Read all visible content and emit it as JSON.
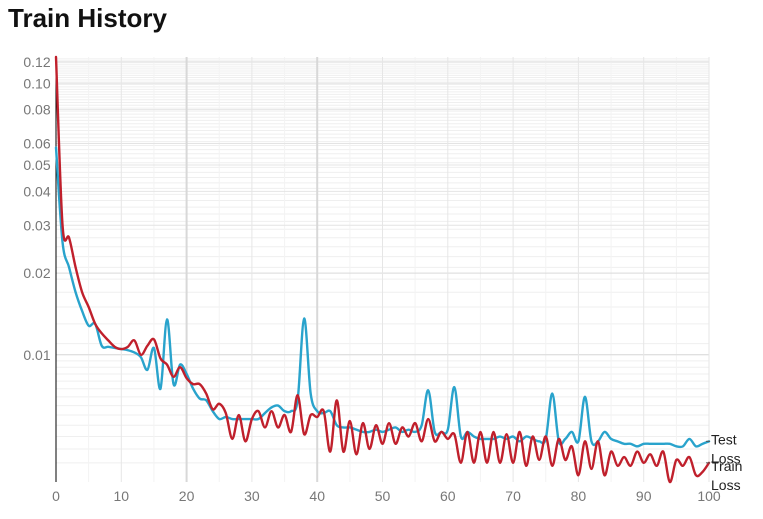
{
  "chart_data": {
    "type": "line",
    "title": "Train History",
    "xlabel": "",
    "ylabel": "",
    "xlim": [
      0,
      100
    ],
    "ylim": [
      0.0034,
      0.125
    ],
    "yscale": "log",
    "grid": true,
    "legend": "line-end labels",
    "x_ticks": [
      0,
      10,
      20,
      30,
      40,
      50,
      60,
      70,
      80,
      90,
      100
    ],
    "y_ticks": [
      0.01,
      0.02,
      0.03,
      0.04,
      0.05,
      0.06,
      0.08,
      0.1,
      0.12
    ],
    "y_tick_labels": [
      "0.01",
      "0.02",
      "0.03",
      "0.04",
      "0.05",
      "0.06",
      "0.08",
      "0.10",
      "0.12"
    ],
    "x": [
      0,
      1,
      2,
      3,
      4,
      5,
      6,
      7,
      8,
      9,
      10,
      11,
      12,
      13,
      14,
      15,
      16,
      17,
      18,
      19,
      20,
      21,
      22,
      23,
      24,
      25,
      26,
      27,
      28,
      29,
      30,
      31,
      32,
      33,
      34,
      35,
      36,
      37,
      38,
      39,
      40,
      41,
      42,
      43,
      44,
      45,
      46,
      47,
      48,
      49,
      50,
      51,
      52,
      53,
      54,
      55,
      56,
      57,
      58,
      59,
      60,
      61,
      62,
      63,
      64,
      65,
      66,
      67,
      68,
      69,
      70,
      71,
      72,
      73,
      74,
      75,
      76,
      77,
      78,
      79,
      80,
      81,
      82,
      83,
      84,
      85,
      86,
      87,
      88,
      89,
      90,
      91,
      92,
      93,
      94,
      95,
      96,
      97,
      98,
      99,
      100
    ],
    "series": [
      {
        "name": "Test Loss",
        "color": "#29a3cc",
        "values": [
          0.058,
          0.026,
          0.021,
          0.017,
          0.0145,
          0.0128,
          0.013,
          0.0108,
          0.0107,
          0.0106,
          0.0105,
          0.0104,
          0.0102,
          0.0098,
          0.0088,
          0.0106,
          0.0075,
          0.0135,
          0.0078,
          0.0092,
          0.0085,
          0.0075,
          0.0069,
          0.0068,
          0.0062,
          0.0058,
          0.0059,
          0.0058,
          0.0058,
          0.0058,
          0.0058,
          0.0058,
          0.0061,
          0.0064,
          0.0065,
          0.0062,
          0.0062,
          0.0068,
          0.0136,
          0.0072,
          0.0062,
          0.0061,
          0.0062,
          0.0055,
          0.0054,
          0.0054,
          0.0053,
          0.0052,
          0.0052,
          0.0053,
          0.0052,
          0.0053,
          0.0054,
          0.0052,
          0.0053,
          0.0052,
          0.0055,
          0.0074,
          0.0052,
          0.0052,
          0.0053,
          0.0076,
          0.005,
          0.0052,
          0.005,
          0.0049,
          0.0049,
          0.0049,
          0.005,
          0.0049,
          0.005,
          0.0048,
          0.005,
          0.0049,
          0.0048,
          0.0049,
          0.0072,
          0.0048,
          0.0049,
          0.0052,
          0.0048,
          0.007,
          0.0048,
          0.0048,
          0.0052,
          0.0049,
          0.0048,
          0.0047,
          0.0047,
          0.0046,
          0.0047,
          0.0047,
          0.0047,
          0.0047,
          0.0047,
          0.0046,
          0.0046,
          0.0049,
          0.0046,
          0.0047,
          0.0048
        ]
      },
      {
        "name": "Train Loss",
        "color": "#c0202c",
        "values": [
          0.125,
          0.03,
          0.027,
          0.021,
          0.017,
          0.015,
          0.013,
          0.012,
          0.0113,
          0.0107,
          0.0105,
          0.0107,
          0.0113,
          0.01,
          0.0108,
          0.0114,
          0.0097,
          0.0092,
          0.0083,
          0.009,
          0.0082,
          0.0078,
          0.0078,
          0.0072,
          0.0063,
          0.0066,
          0.0061,
          0.0049,
          0.006,
          0.0048,
          0.0058,
          0.0062,
          0.0054,
          0.0062,
          0.0054,
          0.006,
          0.0052,
          0.0071,
          0.0051,
          0.006,
          0.0059,
          0.0062,
          0.0044,
          0.0068,
          0.0044,
          0.0057,
          0.0043,
          0.0056,
          0.0045,
          0.0055,
          0.0047,
          0.0056,
          0.0047,
          0.0054,
          0.005,
          0.0056,
          0.0048,
          0.0058,
          0.0048,
          0.0052,
          0.0049,
          0.0051,
          0.004,
          0.0052,
          0.004,
          0.0052,
          0.004,
          0.0052,
          0.004,
          0.0051,
          0.004,
          0.0052,
          0.0039,
          0.005,
          0.0041,
          0.005,
          0.0039,
          0.0049,
          0.0041,
          0.0046,
          0.0036,
          0.0048,
          0.0038,
          0.0048,
          0.0036,
          0.0044,
          0.0039,
          0.0042,
          0.0039,
          0.0044,
          0.004,
          0.0043,
          0.0039,
          0.0044,
          0.0034,
          0.0041,
          0.0039,
          0.0042,
          0.0036,
          0.0037,
          0.004
        ]
      }
    ],
    "end_labels": [
      {
        "lines": [
          "Test",
          "Loss"
        ]
      },
      {
        "lines": [
          "Train",
          "Loss"
        ]
      }
    ]
  }
}
